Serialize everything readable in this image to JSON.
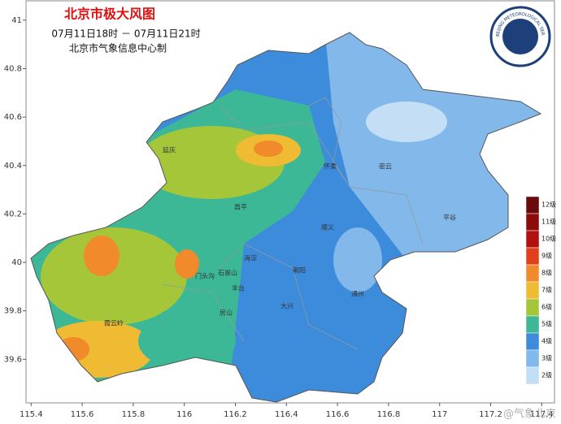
{
  "title": "北京市极大风图",
  "time": "07月11日18时 － 07月11日21时",
  "producer": "北京市气象信息中心制",
  "logo": {
    "text": "BEIJING METEOROLOGICAL SERVICE"
  },
  "watermark": "@气象北京",
  "map": {
    "xlim": [
      115.38,
      117.45
    ],
    "ylim": [
      39.42,
      41.08
    ],
    "xticks": [
      115.4,
      115.6,
      115.8,
      116,
      116.2,
      116.4,
      116.6,
      116.8,
      117,
      117.2,
      117.4
    ],
    "yticks": [
      39.6,
      39.8,
      40,
      40.2,
      40.4,
      40.6,
      40.8,
      41
    ]
  },
  "legend": [
    {
      "label": "12级",
      "color": "#6a0a0a"
    },
    {
      "label": "11级",
      "color": "#8c0c0c"
    },
    {
      "label": "10级",
      "color": "#b01010"
    },
    {
      "label": "9级",
      "color": "#e0401a"
    },
    {
      "label": "8级",
      "color": "#f08a2a"
    },
    {
      "label": "7级",
      "color": "#eebb33"
    },
    {
      "label": "6级",
      "color": "#a6c63a"
    },
    {
      "label": "5级",
      "color": "#3cb896"
    },
    {
      "label": "4级",
      "color": "#3d8cdc"
    },
    {
      "label": "3级",
      "color": "#82b9ea"
    },
    {
      "label": "2级",
      "color": "#c4def5"
    }
  ],
  "districts": [
    "延庆",
    "怀柔",
    "密云",
    "平谷",
    "顺义",
    "昌平",
    "门头沟",
    "海淀",
    "朝阳",
    "通州",
    "大兴",
    "房山",
    "石景山",
    "丰台",
    "霞云岭"
  ]
}
